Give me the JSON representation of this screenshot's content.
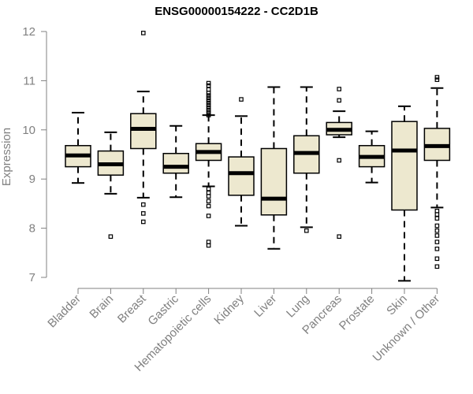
{
  "chart_data": {
    "type": "boxplot",
    "title": "ENSG00000154222 - CC2D1B",
    "xlabel": "",
    "ylabel": "Expression",
    "ylim": [
      7,
      12
    ],
    "yticks": [
      7,
      8,
      9,
      10,
      11,
      12
    ],
    "grid": false,
    "colors": {
      "box_fill": "#ede8cf",
      "stroke": "#000000",
      "axis": "#808080"
    },
    "categories": [
      "Bladder",
      "Brain",
      "Breast",
      "Gastric",
      "Hematopoietic cells",
      "Kidney",
      "Liver",
      "Lung",
      "Pancreas",
      "Prostate",
      "Skin",
      "Unknown / Other"
    ],
    "boxes": [
      {
        "whisker_low": 8.92,
        "q1": 9.25,
        "median": 9.48,
        "q3": 9.68,
        "whisker_high": 10.35,
        "outliers": []
      },
      {
        "whisker_low": 8.7,
        "q1": 9.08,
        "median": 9.3,
        "q3": 9.57,
        "whisker_high": 9.95,
        "outliers": [
          7.83
        ]
      },
      {
        "whisker_low": 8.62,
        "q1": 9.62,
        "median": 10.02,
        "q3": 10.33,
        "whisker_high": 10.78,
        "outliers": [
          8.48,
          8.3,
          8.13,
          11.97
        ]
      },
      {
        "whisker_low": 8.63,
        "q1": 9.12,
        "median": 9.25,
        "q3": 9.52,
        "whisker_high": 10.08,
        "outliers": []
      },
      {
        "whisker_low": 8.85,
        "q1": 9.38,
        "median": 9.55,
        "q3": 9.72,
        "whisker_high": 10.3,
        "outliers": [
          7.65,
          7.72,
          8.25,
          8.45,
          8.55,
          8.65,
          8.72,
          8.8,
          10.3,
          10.35,
          10.4,
          10.45,
          10.5,
          10.55,
          10.6,
          10.65,
          10.7,
          10.75,
          10.82,
          10.9,
          10.95
        ]
      },
      {
        "whisker_low": 8.05,
        "q1": 8.67,
        "median": 9.12,
        "q3": 9.45,
        "whisker_high": 10.28,
        "outliers": [
          10.62
        ]
      },
      {
        "whisker_low": 7.58,
        "q1": 8.27,
        "median": 8.6,
        "q3": 9.62,
        "whisker_high": 10.87,
        "outliers": []
      },
      {
        "whisker_low": 8.02,
        "q1": 9.12,
        "median": 9.53,
        "q3": 9.88,
        "whisker_high": 10.87,
        "outliers": [
          7.95
        ]
      },
      {
        "whisker_low": 9.85,
        "q1": 9.9,
        "median": 10.0,
        "q3": 10.15,
        "whisker_high": 10.38,
        "outliers": [
          9.38,
          7.83,
          10.6,
          10.83
        ]
      },
      {
        "whisker_low": 8.93,
        "q1": 9.25,
        "median": 9.45,
        "q3": 9.68,
        "whisker_high": 9.97,
        "outliers": []
      },
      {
        "whisker_low": 6.93,
        "q1": 8.37,
        "median": 9.58,
        "q3": 10.17,
        "whisker_high": 10.48,
        "outliers": []
      },
      {
        "whisker_low": 8.42,
        "q1": 9.38,
        "median": 9.67,
        "q3": 10.03,
        "whisker_high": 10.85,
        "outliers": [
          7.22,
          7.38,
          7.58,
          7.72,
          7.85,
          7.95,
          8.05,
          8.2,
          8.28,
          8.35,
          11.02,
          11.07
        ]
      }
    ]
  }
}
